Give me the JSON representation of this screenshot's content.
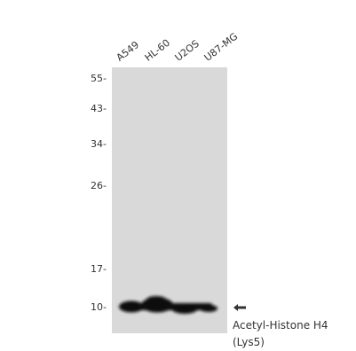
{
  "lanes": [
    "A549",
    "HL-60",
    "U2OS",
    "U87-MG"
  ],
  "mw_markers": [
    "55-",
    "43-",
    "34-",
    "26-",
    "17-",
    "10-"
  ],
  "target": {
    "line1": "Acetyl-Histone H4",
    "line2": "(Lys5)"
  },
  "colors": {
    "panel": "#d9d9d9",
    "band": "#111111",
    "text": "#333333"
  },
  "arrow_icon": "left-arrow-icon"
}
